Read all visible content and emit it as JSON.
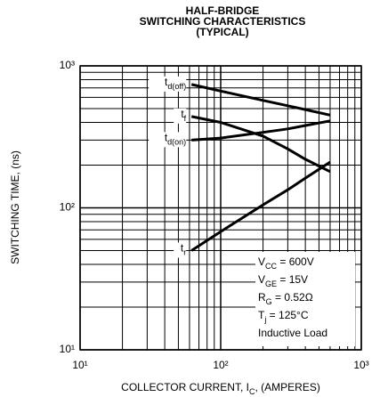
{
  "chart_data": {
    "type": "line",
    "title": [
      "HALF-BRIDGE",
      "SWITCHING CHARACTERISTICS",
      "(TYPICAL)"
    ],
    "x_label": [
      "COLLECTOR CURRENT, I",
      "C",
      ", (AMPERES)"
    ],
    "y_label": "SWITCHING TIME, (ns)",
    "x": [
      62,
      100,
      200,
      300,
      400,
      600
    ],
    "series": [
      {
        "name": "td(off)",
        "color": "#000000",
        "values": [
          740,
          665,
          571,
          524,
          492,
          450
        ]
      },
      {
        "name": "tf",
        "color": "#000000",
        "values": [
          440,
          400,
          320,
          260,
          220,
          180
        ]
      },
      {
        "name": "td(on)",
        "color": "#000000",
        "values": [
          300,
          310,
          340,
          360,
          380,
          410
        ]
      },
      {
        "name": "tr",
        "color": "#000000",
        "values": [
          50,
          68,
          105,
          134,
          162,
          210
        ]
      }
    ],
    "xlim": [
      10,
      1000
    ],
    "ylim": [
      10,
      1000
    ],
    "log_x": true,
    "log_y": true,
    "grid": true,
    "xticks": [
      {
        "value": 10,
        "label": "10¹"
      },
      {
        "value": 100,
        "label": "10²"
      },
      {
        "value": 1000,
        "label": "10³"
      }
    ],
    "yticks": [
      {
        "value": 10,
        "label": "10¹"
      },
      {
        "value": 100,
        "label": "10²"
      },
      {
        "value": 1000,
        "label": "10³"
      }
    ],
    "xminor_ticks": [
      20,
      30,
      40,
      50,
      60,
      70,
      80,
      90,
      200,
      300,
      400,
      500,
      600,
      700,
      800,
      900
    ],
    "yminor_ticks": [
      20,
      30,
      40,
      50,
      60,
      70,
      80,
      90,
      200,
      300,
      400,
      500,
      600,
      700,
      800,
      900
    ],
    "annotations": [
      [
        "V",
        "CC",
        " = 600V"
      ],
      [
        "V",
        "GE",
        " = 15V"
      ],
      [
        "R",
        "G",
        " = 0.52Ω"
      ],
      [
        "T",
        "j",
        " = 125°C"
      ],
      [
        "Inductive Load"
      ]
    ]
  }
}
